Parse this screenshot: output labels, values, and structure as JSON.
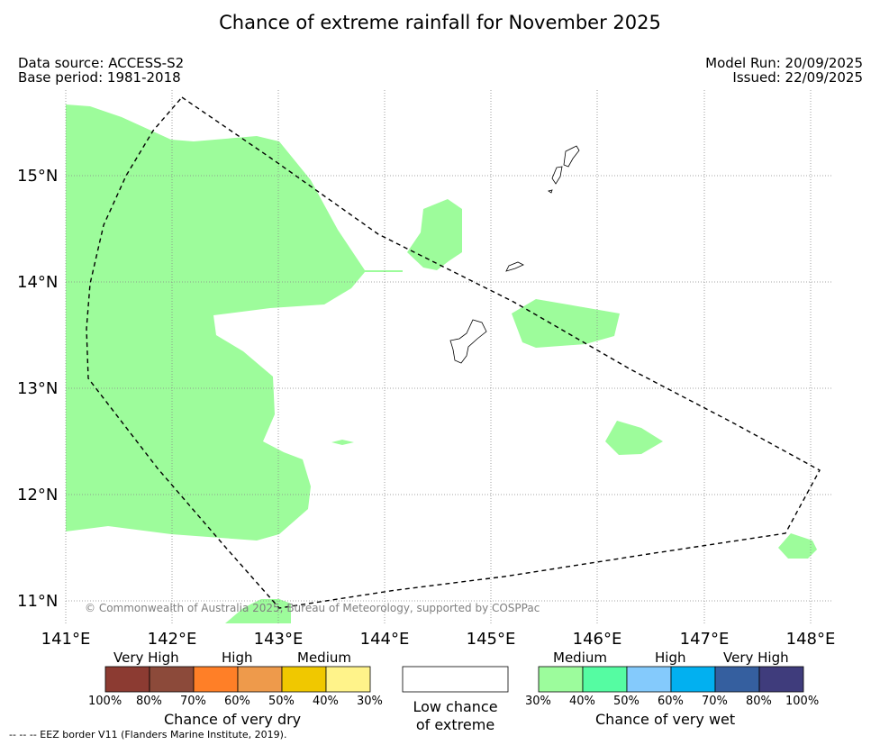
{
  "title": "Chance of extreme rainfall for November 2025",
  "header": {
    "data_source": "Data source: ACCESS-S2",
    "base_period": "Base period: 1981-2018",
    "model_run": "Model Run: 20/09/2025",
    "issued": "Issued: 22/09/2025"
  },
  "map": {
    "lon_ticks": [
      "141°E",
      "142°E",
      "143°E",
      "144°E",
      "145°E",
      "146°E",
      "147°E",
      "148°E"
    ],
    "lat_ticks": [
      "15°N",
      "14°N",
      "13°N",
      "12°N",
      "11°N"
    ],
    "copyright": "© Commonwealth of Australia 2025, Bureau of Meteorology, supported by COSPPac",
    "regions": [
      {
        "name": "west-large-area",
        "category": "wet-medium"
      },
      {
        "name": "north-central-patch",
        "category": "wet-medium"
      },
      {
        "name": "east-patch",
        "category": "wet-medium"
      },
      {
        "name": "southeast-small-patch",
        "category": "wet-medium"
      },
      {
        "name": "far-southeast-patch",
        "category": "wet-medium"
      },
      {
        "name": "south-bottom-patch",
        "category": "wet-medium"
      },
      {
        "name": "tiny-speck",
        "category": "wet-medium"
      }
    ]
  },
  "legend": {
    "dry": {
      "categories": [
        "Very High",
        "High",
        "Medium"
      ],
      "percents": [
        "100%",
        "80%",
        "70%",
        "60%",
        "50%",
        "40%",
        "30%"
      ],
      "caption": "Chance of very dry",
      "colors": [
        "#8c3b32",
        "#8c4a3a",
        "#ff7f27",
        "#ee9a4b",
        "#f0c800",
        "#fff38a"
      ]
    },
    "neutral": {
      "caption_line1": "Low chance",
      "caption_line2": "of extreme",
      "color": "#ffffff"
    },
    "wet": {
      "categories": [
        "Medium",
        "High",
        "Very High"
      ],
      "percents": [
        "30%",
        "40%",
        "50%",
        "60%",
        "70%",
        "80%",
        "100%"
      ],
      "caption": "Chance of very wet",
      "colors": [
        "#9cfc9c",
        "#55fca2",
        "#84cafc",
        "#02b0f0",
        "#355f9f",
        "#3f3c7c"
      ]
    }
  },
  "footnote": "-- -- -- EEZ border V11 (Flanders Marine Institute, 2019).",
  "colors": {
    "wet_medium": "#9dfc9b",
    "grid": "#888888",
    "eez": "#000000"
  }
}
